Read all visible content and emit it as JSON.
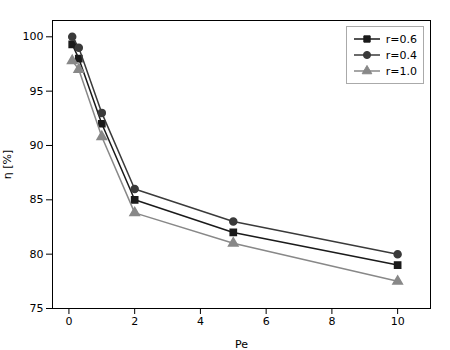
{
  "chart_data": {
    "type": "line",
    "xlabel": "Pe",
    "ylabel": "η [%]",
    "x": [
      0.1,
      0.3,
      1,
      2,
      5,
      10
    ],
    "series": [
      {
        "name": "r=0.6",
        "color": "#1a1a1a",
        "marker": "square",
        "line_style": "solid",
        "values": [
          99.3,
          98.0,
          92.0,
          85.0,
          82.0,
          79.0
        ]
      },
      {
        "name": "r=0.4",
        "color": "#3a3a3a",
        "marker": "circle",
        "line_style": "solid",
        "values": [
          100.0,
          99.0,
          93.0,
          86.0,
          83.0,
          80.0
        ]
      },
      {
        "name": "r=1.0",
        "color": "#888888",
        "marker": "triangle",
        "line_style": "solid",
        "values": [
          97.8,
          97.0,
          90.8,
          83.8,
          81.0,
          77.5
        ]
      }
    ],
    "xlim": [
      -0.5,
      11
    ],
    "ylim": [
      75,
      101.5
    ],
    "xticks": [
      0,
      2,
      4,
      6,
      8,
      10
    ],
    "yticks": [
      75,
      80,
      85,
      90,
      95,
      100
    ],
    "grid": false,
    "legend": "upper right"
  }
}
